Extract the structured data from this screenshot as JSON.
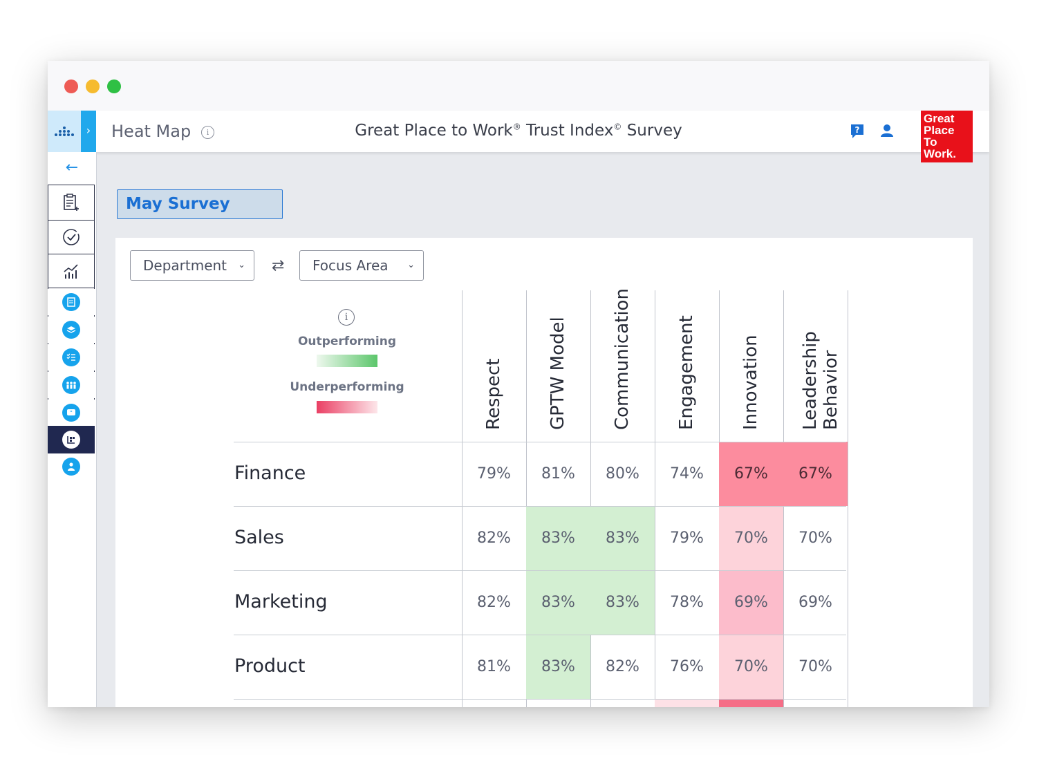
{
  "window": {
    "controls": [
      "close",
      "minimize",
      "maximize"
    ]
  },
  "header": {
    "page_title": "Heat Map",
    "info_icon": "info-icon",
    "survey_title": "Great Place to Work",
    "survey_title_reg": "®",
    "survey_title_mid": " Trust Index",
    "survey_title_copy": "©",
    "survey_title_end": " Survey",
    "logo_lines": [
      "Great",
      "Place",
      "To",
      "Work."
    ],
    "help_icon": "help-chat-icon",
    "user_icon": "user-icon",
    "accent": "#20a8ec",
    "logo_color": "#e8111a"
  },
  "sidebar": {
    "back_icon": "back-arrow-icon",
    "items": [
      {
        "icon": "survey-clipboard-icon"
      },
      {
        "icon": "check-circle-icon"
      },
      {
        "icon": "analytics-chart-icon"
      },
      {
        "icon": "document-icon"
      },
      {
        "icon": "layers-icon"
      },
      {
        "icon": "checklist-icon"
      },
      {
        "icon": "people-icon"
      },
      {
        "icon": "comment-icon"
      },
      {
        "icon": "heatmap-icon",
        "active": true
      },
      {
        "icon": "person-icon"
      }
    ]
  },
  "survey_selector": "May Survey",
  "filters": {
    "row_dimension": "Department",
    "column_dimension": "Focus Area",
    "swap_icon": "swap-icon"
  },
  "legend": {
    "outperforming": "Outperforming",
    "underperforming": "Underperforming",
    "outperforming_color": "#5cc66b",
    "underperforming_color": "#ea3f64"
  },
  "heatmap": {
    "columns": [
      "Respect",
      "GPTW Model",
      "Communication",
      "Engagement",
      "Innovation",
      "Leadership Behavior"
    ],
    "rows": [
      {
        "label": "Finance",
        "values": [
          "79%",
          "81%",
          "80%",
          "74%",
          "67%",
          "67%"
        ],
        "levels": [
          "none",
          "none",
          "none",
          "none",
          "under-strong",
          "under-strong"
        ]
      },
      {
        "label": "Sales",
        "values": [
          "82%",
          "83%",
          "83%",
          "79%",
          "70%",
          "70%"
        ],
        "levels": [
          "none",
          "out",
          "out",
          "none",
          "under-light",
          "none"
        ]
      },
      {
        "label": "Marketing",
        "values": [
          "82%",
          "83%",
          "83%",
          "78%",
          "69%",
          "69%"
        ],
        "levels": [
          "none",
          "out",
          "out",
          "none",
          "under-medium",
          "none"
        ]
      },
      {
        "label": "Product",
        "values": [
          "81%",
          "83%",
          "82%",
          "76%",
          "70%",
          "70%"
        ],
        "levels": [
          "none",
          "out",
          "none",
          "none",
          "under-light",
          "none"
        ]
      }
    ],
    "partial_row_levels": [
      "none",
      "none",
      "none",
      "under-faint",
      "under-strong",
      "none"
    ]
  }
}
